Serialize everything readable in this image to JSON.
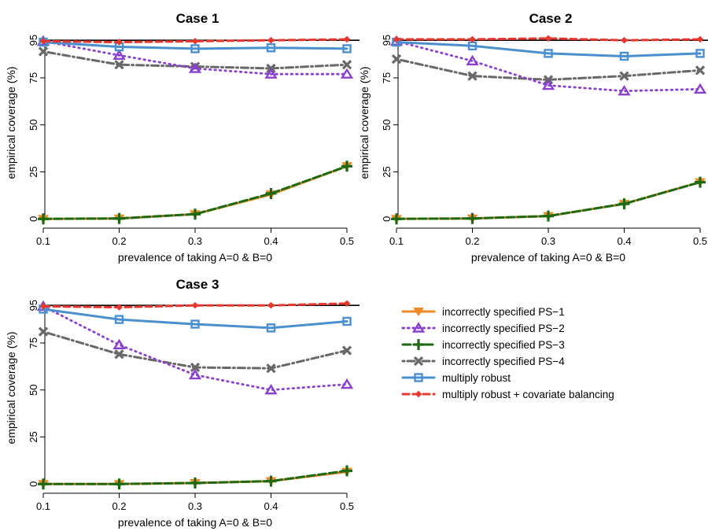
{
  "series_styles": [
    {
      "name": "incorrectly specified PS−1",
      "color": "#f08a24",
      "dash": "solid",
      "marker": "tri-down"
    },
    {
      "name": "incorrectly specified PS−2",
      "color": "#8b3fd1",
      "dash": "dotted",
      "marker": "tri-up-open"
    },
    {
      "name": "incorrectly specified PS−3",
      "color": "#1c6b12",
      "dash": "longdash",
      "marker": "plus"
    },
    {
      "name": "incorrectly specified PS−4",
      "color": "#686868",
      "dash": "dotdash",
      "marker": "cross"
    },
    {
      "name": "multiply robust",
      "color": "#4a90cf",
      "dash": "solid",
      "marker": "square-open"
    },
    {
      "name": "multiply robust + covariate balancing",
      "color": "#e8382e",
      "dash": "dashed",
      "marker": "diamond"
    }
  ],
  "chart_data": [
    {
      "type": "line",
      "title": "Case 1",
      "xlabel": "prevalence of taking A=0 & B=0",
      "ylabel": "empirical coverage (%)",
      "x": [
        0.1,
        0.2,
        0.3,
        0.4,
        0.5
      ],
      "x_tick_labels": [
        "0.1",
        "0.2",
        "0.3",
        "0.4",
        "0.5"
      ],
      "y_ticks": [
        0,
        25,
        50,
        75,
        95
      ],
      "y_tick_labels": [
        "0",
        "25",
        "50",
        "75",
        "95"
      ],
      "ylim": [
        -2,
        98
      ],
      "reference_line": 95,
      "series": [
        {
          "name": "incorrectly specified PS−1",
          "values": [
            0,
            0.2,
            2.5,
            13,
            28
          ]
        },
        {
          "name": "incorrectly specified PS−2",
          "values": [
            94.5,
            87,
            80,
            77,
            77
          ]
        },
        {
          "name": "incorrectly specified PS−3",
          "values": [
            0,
            0.2,
            2.5,
            13.5,
            28
          ]
        },
        {
          "name": "incorrectly specified PS−4",
          "values": [
            89,
            82,
            81,
            80,
            82
          ]
        },
        {
          "name": "multiply robust",
          "values": [
            94,
            91.5,
            90.5,
            91,
            90.5
          ]
        },
        {
          "name": "multiply robust + covariate balancing",
          "values": [
            94.5,
            94,
            94.5,
            95,
            95.5
          ]
        }
      ]
    },
    {
      "type": "line",
      "title": "Case 2",
      "xlabel": "prevalence of taking A=0 & B=0",
      "ylabel": "empirical coverage (%)",
      "x": [
        0.1,
        0.2,
        0.3,
        0.4,
        0.5
      ],
      "x_tick_labels": [
        "0.1",
        "0.2",
        "0.3",
        "0.4",
        "0.5"
      ],
      "y_ticks": [
        0,
        25,
        50,
        75,
        95
      ],
      "y_tick_labels": [
        "0",
        "25",
        "50",
        "75",
        "95"
      ],
      "ylim": [
        -2,
        98
      ],
      "reference_line": 95,
      "series": [
        {
          "name": "incorrectly specified PS−1",
          "values": [
            0,
            0.2,
            1.5,
            8,
            19.5
          ]
        },
        {
          "name": "incorrectly specified PS−2",
          "values": [
            94.5,
            84,
            71,
            68,
            69
          ]
        },
        {
          "name": "incorrectly specified PS−3",
          "values": [
            0,
            0.2,
            1.5,
            8,
            19.5
          ]
        },
        {
          "name": "incorrectly specified PS−4",
          "values": [
            85,
            76,
            74,
            76,
            79
          ]
        },
        {
          "name": "multiply robust",
          "values": [
            94,
            92,
            88,
            86.5,
            88
          ]
        },
        {
          "name": "multiply robust + covariate balancing",
          "values": [
            95.5,
            95.5,
            96,
            95,
            95.5
          ]
        }
      ]
    },
    {
      "type": "line",
      "title": "Case 3",
      "xlabel": "prevalence of taking A=0 & B=0",
      "ylabel": "empirical coverage (%)",
      "x": [
        0.1,
        0.2,
        0.3,
        0.4,
        0.5
      ],
      "x_tick_labels": [
        "0.1",
        "0.2",
        "0.3",
        "0.4",
        "0.5"
      ],
      "y_ticks": [
        0,
        25,
        50,
        75,
        95
      ],
      "y_tick_labels": [
        "0",
        "25",
        "50",
        "75",
        "95"
      ],
      "ylim": [
        -2,
        98
      ],
      "reference_line": 95,
      "series": [
        {
          "name": "incorrectly specified PS−1",
          "values": [
            0,
            0,
            0.5,
            1.5,
            6.5
          ]
        },
        {
          "name": "incorrectly specified PS−2",
          "values": [
            94.5,
            74,
            58,
            50,
            53
          ]
        },
        {
          "name": "incorrectly specified PS−3",
          "values": [
            0,
            0,
            0.5,
            1.5,
            7
          ]
        },
        {
          "name": "incorrectly specified PS−4",
          "values": [
            81,
            69,
            62,
            61.5,
            71
          ]
        },
        {
          "name": "multiply robust",
          "values": [
            93,
            87.5,
            85,
            83,
            86.5
          ]
        },
        {
          "name": "multiply robust + covariate balancing",
          "values": [
            94.5,
            94,
            95,
            95,
            96
          ]
        }
      ]
    }
  ]
}
